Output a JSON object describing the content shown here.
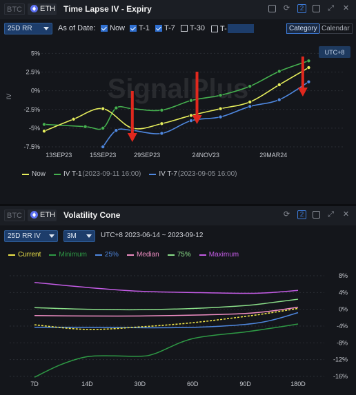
{
  "top": {
    "coins": {
      "btc": "BTC",
      "eth": "ETH"
    },
    "title": "Time Lapse IV - Expiry",
    "badge": "2",
    "select": "25D RR",
    "as_of_label": "As of Date:",
    "checks": [
      {
        "label": "Now",
        "checked": true
      },
      {
        "label": "T-1",
        "checked": true
      },
      {
        "label": "T-7",
        "checked": true
      },
      {
        "label": "T-30",
        "checked": false
      },
      {
        "label": "T-",
        "checked": false
      }
    ],
    "view_tabs": [
      "Category",
      "Calendar"
    ],
    "active_view": "Category",
    "timezone": "UTC+8",
    "watermark": "SignalPlus",
    "colors": {
      "now": "#e6ee5c",
      "t1": "#45b14f",
      "t7": "#4f88e0",
      "arrow": "#e0281e"
    }
  },
  "bottom": {
    "coins": {
      "btc": "BTC",
      "eth": "ETH"
    },
    "title": "Volatility Cone",
    "badge": "2",
    "select1": "25D RR IV",
    "select2": "3M",
    "range": "UTC+8 2023-06-14 ~ 2023-09-12",
    "colors": {
      "current": "#f0e64a",
      "minimum": "#2e9a45",
      "p25": "#4f88e0",
      "median": "#f08ec4",
      "p75": "#8be08a",
      "maximum": "#c45ce6"
    }
  },
  "chart_data": [
    {
      "type": "line",
      "title": "Time Lapse IV - Expiry",
      "ylabel": "IV",
      "y_ticks": [
        "5%",
        "2.5%",
        "0%",
        "-2.5%",
        "-5%",
        "-7.5%"
      ],
      "y_values": [
        5,
        2.5,
        0,
        -2.5,
        -5,
        -7.5
      ],
      "ylim": [
        -7.5,
        5.5
      ],
      "x_ticks": [
        "13SEP23",
        "15SEP23",
        "29SEP23",
        "24NOV23",
        "29MAR24"
      ],
      "xlim": [
        0,
        10
      ],
      "series": [
        {
          "name": "Now",
          "x": [
            0,
            1,
            2,
            3,
            4,
            5,
            6,
            7,
            8,
            9
          ],
          "values": [
            -5.4,
            -3.8,
            -2.4,
            -5.0,
            -4.4,
            -3.3,
            -2.4,
            -1.5,
            0.8,
            3.1
          ]
        },
        {
          "name": "IV T-1",
          "sub": "(2023-09-11 16:00)",
          "x": [
            0,
            1.4,
            2,
            2.45,
            3,
            4,
            5,
            6,
            7,
            8,
            9
          ],
          "values": [
            -4.5,
            -4.8,
            -5.0,
            -2.3,
            -2.4,
            -2.6,
            -1.3,
            -0.6,
            0.6,
            2.6,
            4.0
          ]
        },
        {
          "name": "IV T-7",
          "sub": "(2023-09-05 16:00)",
          "x": [
            2,
            2.45,
            3,
            4,
            5,
            6,
            7,
            8,
            9
          ],
          "values": [
            -7.5,
            -5.3,
            -5.3,
            -5.7,
            -4.0,
            -3.5,
            -2.1,
            -1.2,
            1.2
          ]
        }
      ],
      "arrows_x": [
        3.0,
        5.2,
        8.8
      ]
    },
    {
      "type": "line",
      "title": "Volatility Cone",
      "x_ticks": [
        "7D",
        "14D",
        "30D",
        "60D",
        "90D",
        "180D"
      ],
      "y_ticks": [
        "8%",
        "4%",
        "0%",
        "-4%",
        "-8%",
        "-12%",
        "-16%"
      ],
      "y_values": [
        8,
        4,
        0,
        -4,
        -8,
        -12,
        -16
      ],
      "ylim": [
        -16,
        8
      ],
      "xlim": [
        0,
        5
      ],
      "series": [
        {
          "name": "Current",
          "x": [
            0,
            1,
            2,
            3,
            4,
            4.5,
            5
          ],
          "values": [
            -3.7,
            -4.8,
            -4.2,
            -3.2,
            -1.7,
            -0.8,
            0.2
          ]
        },
        {
          "name": "Minimum",
          "x": [
            0,
            0.5,
            1,
            1.5,
            2,
            2.3,
            3,
            4,
            4.5,
            5
          ],
          "values": [
            -16.2,
            -13.2,
            -11.3,
            -11.1,
            -11.2,
            -10.5,
            -7.0,
            -5.4,
            -4.5,
            -3.5
          ]
        },
        {
          "name": "25%",
          "x": [
            0,
            1,
            2,
            3,
            4,
            4.5,
            5
          ],
          "values": [
            -4.3,
            -4.3,
            -4.4,
            -4.3,
            -3.6,
            -2.6,
            -0.8
          ]
        },
        {
          "name": "Median",
          "x": [
            0,
            1,
            2,
            3,
            4,
            4.5,
            5
          ],
          "values": [
            -1.5,
            -1.6,
            -1.6,
            -1.4,
            -1.0,
            -0.4,
            0.5
          ]
        },
        {
          "name": "75%",
          "x": [
            0,
            1,
            2,
            3,
            4,
            4.5,
            5
          ],
          "values": [
            0.4,
            0.0,
            -0.1,
            0.2,
            0.9,
            1.6,
            2.4
          ]
        },
        {
          "name": "Maximum",
          "x": [
            0,
            1,
            2,
            3,
            4,
            4.5,
            5
          ],
          "values": [
            6.4,
            5.2,
            4.3,
            4.0,
            3.8,
            4.0,
            4.5
          ]
        }
      ]
    }
  ]
}
